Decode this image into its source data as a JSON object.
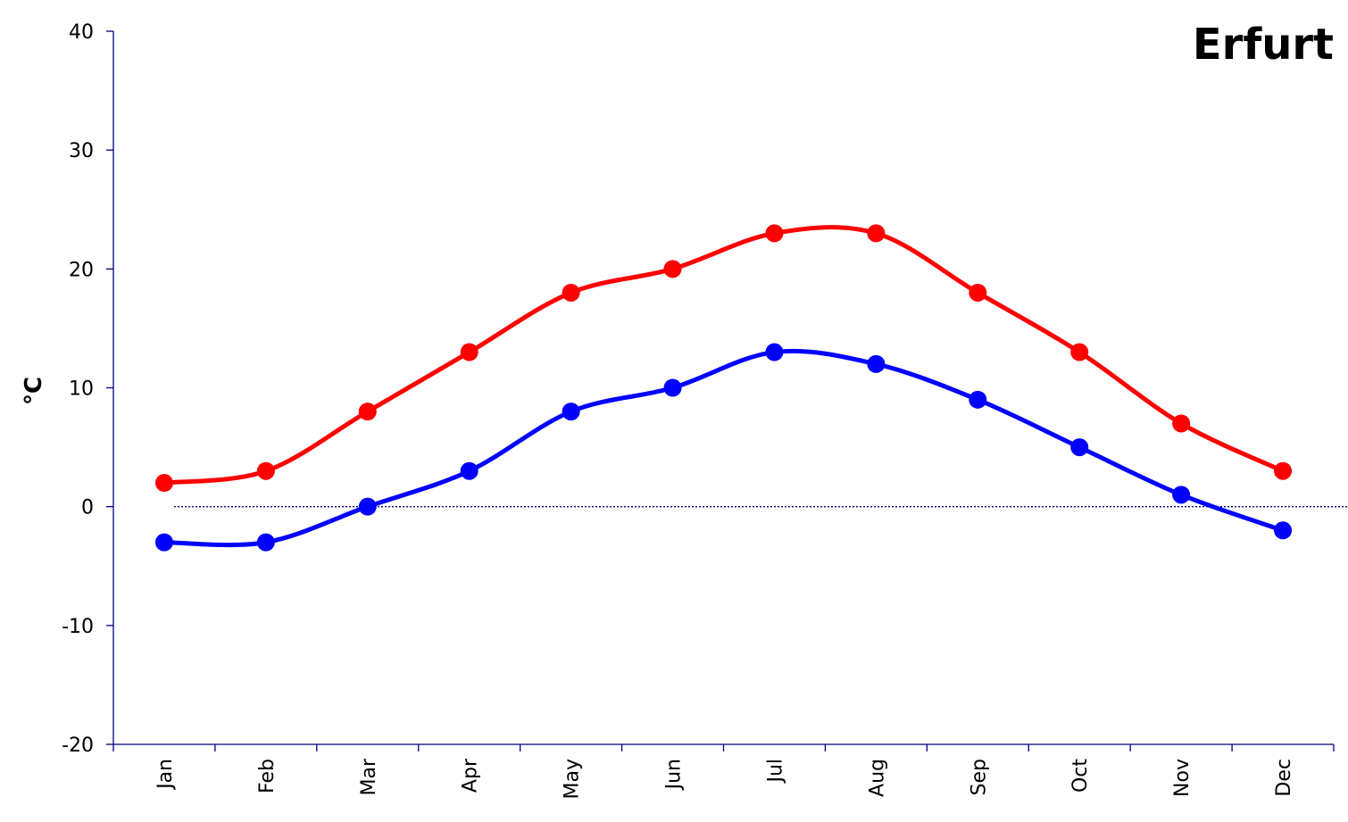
{
  "chart_data": {
    "type": "line",
    "title": "Erfurt",
    "xlabel": "",
    "ylabel": "°C",
    "categories": [
      "Jan",
      "Feb",
      "Mar",
      "Apr",
      "May",
      "Jun",
      "Jul",
      "Aug",
      "Sep",
      "Oct",
      "Nov",
      "Dec"
    ],
    "ylim": [
      -20,
      40
    ],
    "yticks": [
      "40",
      "30",
      "20",
      "10",
      "0",
      "-10",
      "-20"
    ],
    "grid": false,
    "legend": "none",
    "reference_line": {
      "y": 0,
      "style": "dotted",
      "color": "#000080"
    },
    "axis_color": "#000080",
    "series": [
      {
        "color": "#ff0000",
        "values": [
          2,
          3,
          8,
          13,
          18,
          20,
          23,
          23,
          18,
          13,
          7,
          3
        ]
      },
      {
        "color": "#0000ff",
        "values": [
          -3,
          -3,
          0,
          3,
          8,
          10,
          13,
          12,
          9,
          5,
          1,
          -2
        ]
      }
    ]
  }
}
